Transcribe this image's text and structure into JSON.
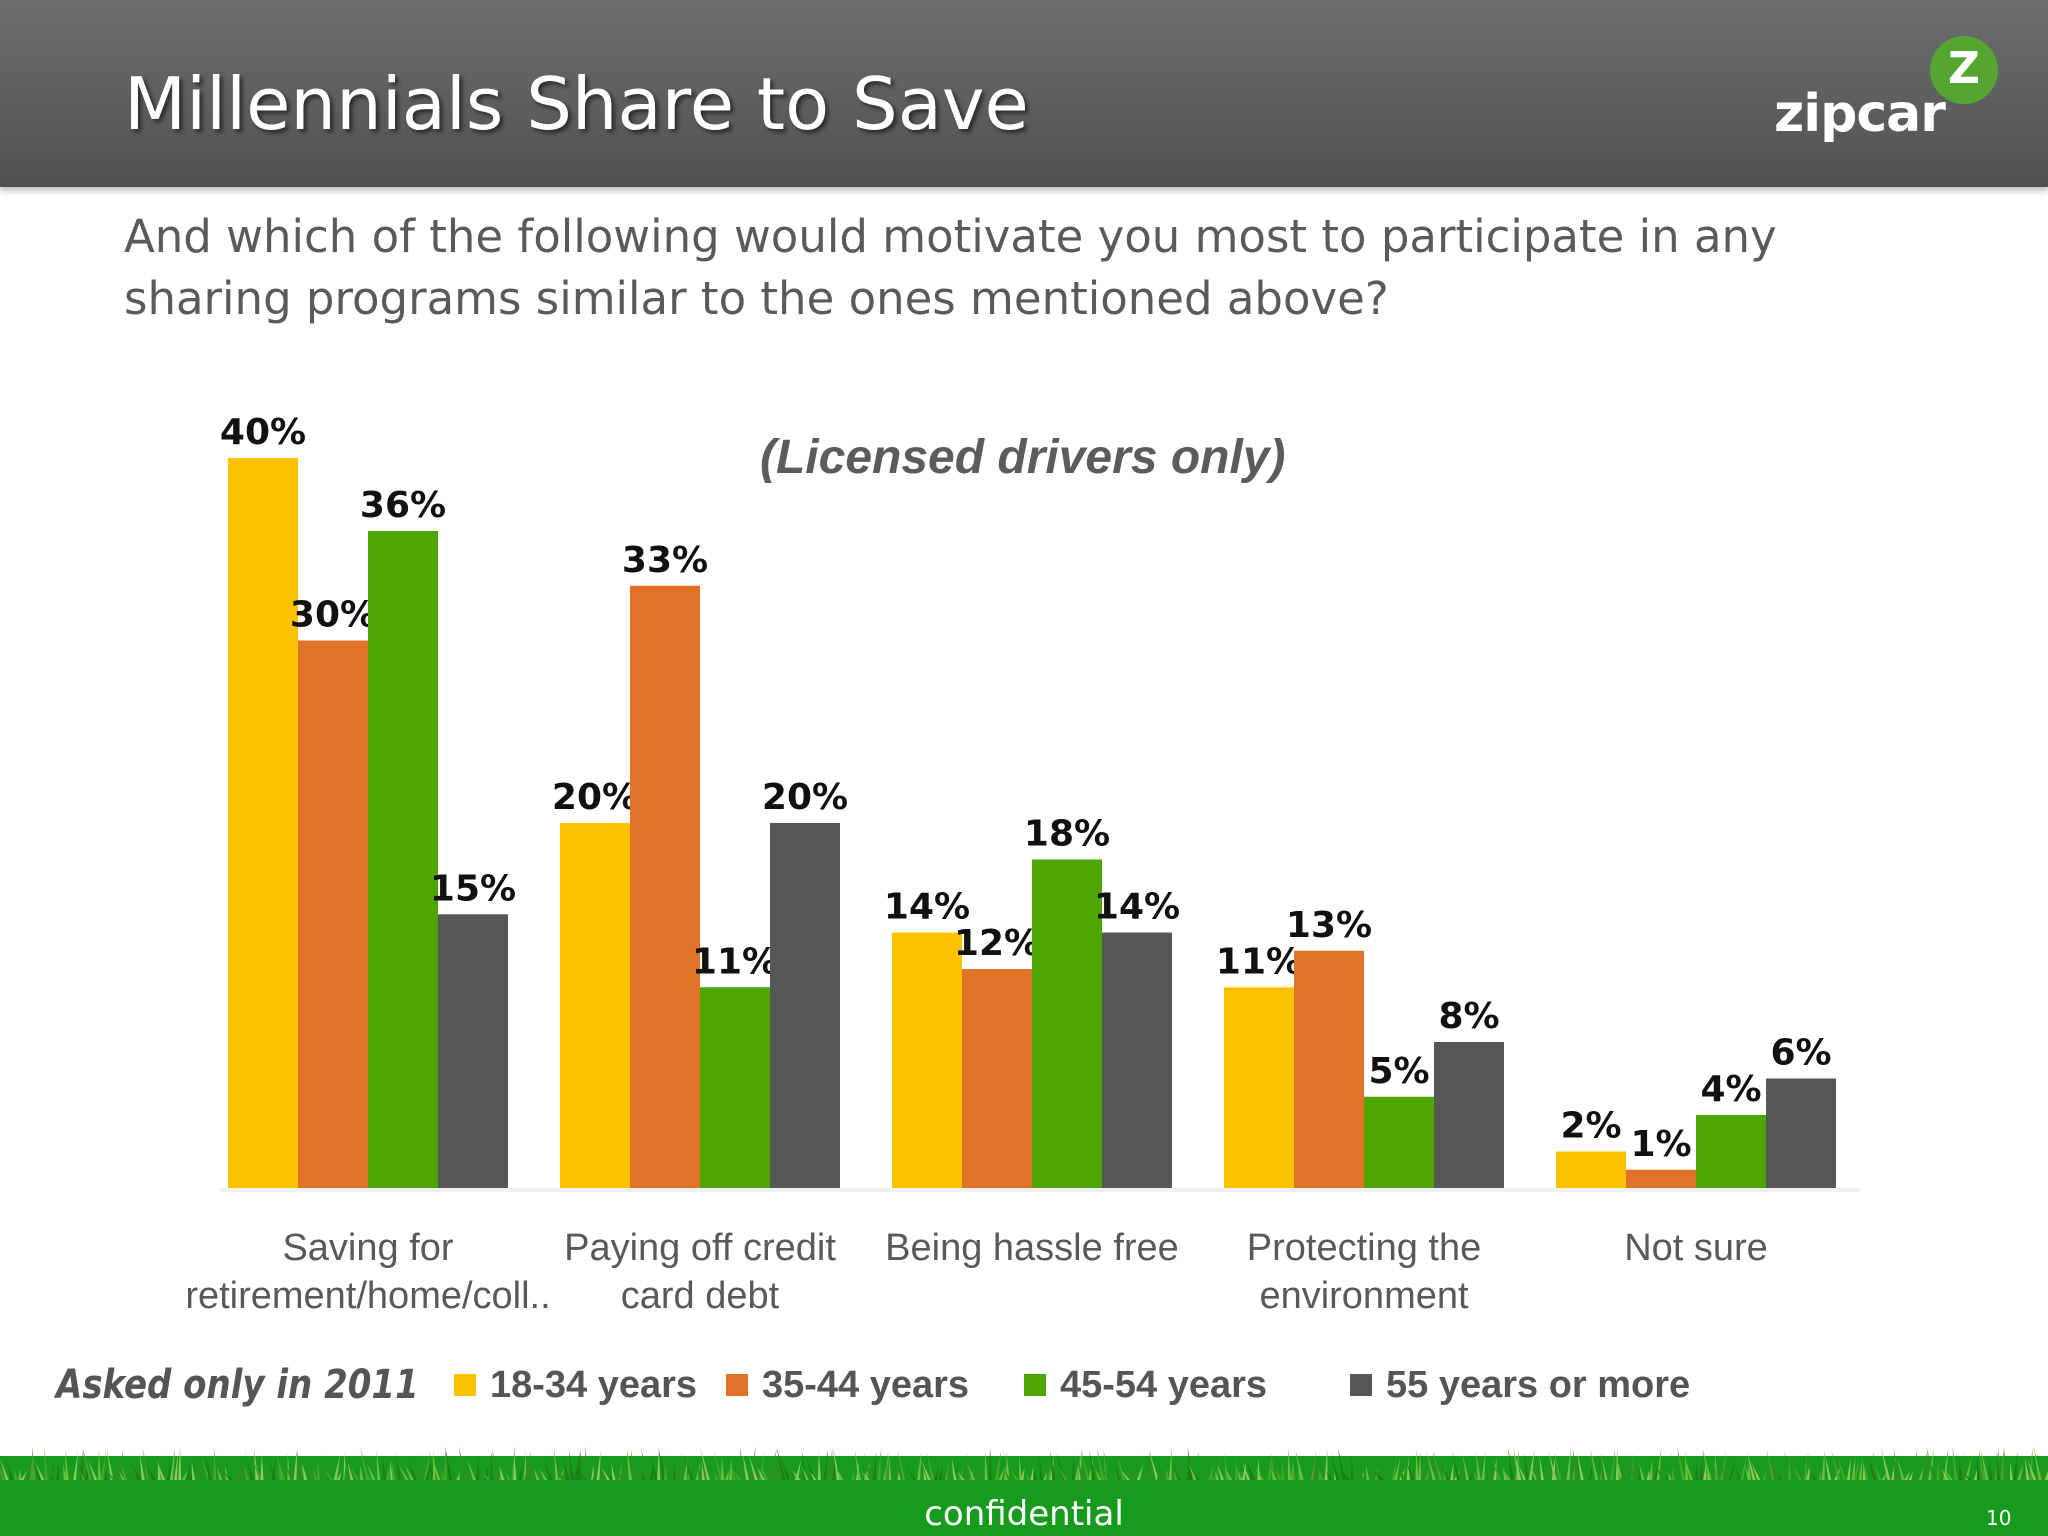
{
  "header": {
    "title": "Millennials Share to Save",
    "logo_text": "zipcar",
    "logo_mark": "Z"
  },
  "question": "And which of the following would motivate you most to participate in any sharing programs similar to the ones mentioned above?",
  "note": "Asked only in 2011",
  "footer": {
    "label": "confidential",
    "page_number": "10"
  },
  "colors": {
    "header_bg": "#585b5a",
    "footer_green": "#169b1e",
    "series": [
      "#ffc200",
      "#e07328",
      "#4ea600",
      "#565857"
    ]
  },
  "chart_data": {
    "type": "bar",
    "title": "(Licensed drivers only)",
    "categories": [
      [
        "Saving for",
        "retirement/home/coll.."
      ],
      [
        "Paying off credit",
        "card debt"
      ],
      [
        "Being hassle free"
      ],
      [
        "Protecting the",
        "environment"
      ],
      [
        "Not sure"
      ]
    ],
    "series": [
      {
        "name": "18-34 years",
        "values": [
          40,
          20,
          14,
          11,
          2
        ],
        "labels": [
          "40%",
          "20%",
          "14%",
          "11%",
          "2%"
        ]
      },
      {
        "name": "35-44 years",
        "values": [
          30,
          33,
          12,
          13,
          1
        ],
        "labels": [
          "30%",
          "33%",
          "12%",
          "13%",
          "1%"
        ]
      },
      {
        "name": "45-54 years",
        "values": [
          36,
          11,
          18,
          5,
          4
        ],
        "labels": [
          "36%",
          "11%",
          "18%",
          "5%",
          "4%"
        ]
      },
      {
        "name": "55 years or more",
        "values": [
          15,
          20,
          14,
          8,
          6
        ],
        "labels": [
          "15%",
          "20%",
          "14%",
          "8%",
          "6%"
        ]
      }
    ],
    "ylim": [
      0,
      40
    ],
    "grid": false,
    "legend_position": "bottom"
  }
}
